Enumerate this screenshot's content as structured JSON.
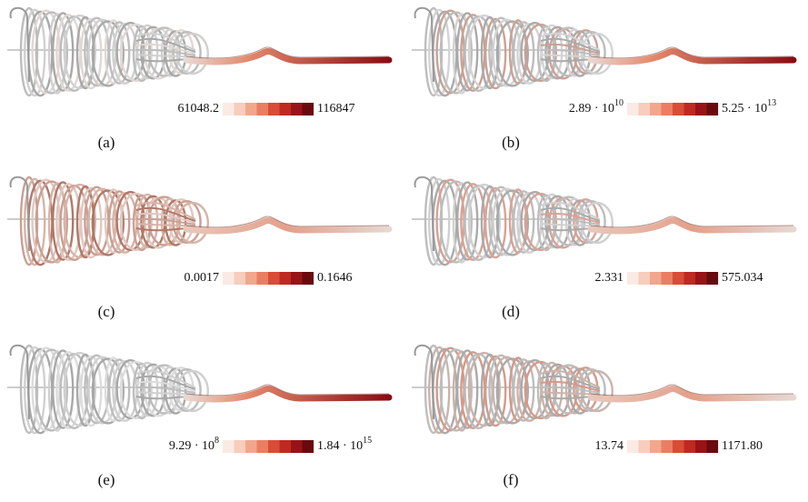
{
  "panels": [
    {
      "label": "(a)",
      "min": "61048.2",
      "max": "116847"
    },
    {
      "label": "(b)",
      "min": {
        "text": "2.89 · 10",
        "sup": "10"
      },
      "max": {
        "text": "5.25 · 10",
        "sup": "13"
      }
    },
    {
      "label": "(c)",
      "min": "0.0017",
      "max": "0.1646"
    },
    {
      "label": "(d)",
      "min": "2.331",
      "max": "575.034"
    },
    {
      "label": "(e)",
      "min": {
        "text": "9.29 · 10",
        "sup": "8"
      },
      "max": {
        "text": "1.84 · 10",
        "sup": "15"
      }
    },
    {
      "label": "(f)",
      "min": "13.74",
      "max": "1171.80"
    }
  ]
}
